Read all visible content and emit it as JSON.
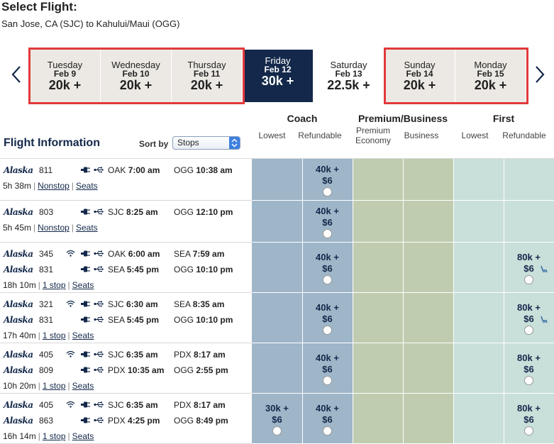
{
  "page": {
    "title": "Select Flight:",
    "route": "San Jose, CA (SJC) to Kahului/Maui (OGG)"
  },
  "dates": [
    {
      "dow": "Tuesday",
      "date": "Feb 9",
      "price": "20k +"
    },
    {
      "dow": "Wednesday",
      "date": "Feb 10",
      "price": "20k +"
    },
    {
      "dow": "Thursday",
      "date": "Feb 11",
      "price": "20k +"
    },
    {
      "dow": "Friday",
      "date": "Feb 12",
      "price": "30k +"
    },
    {
      "dow": "Saturday",
      "date": "Feb 13",
      "price": "22.5k +"
    },
    {
      "dow": "Sunday",
      "date": "Feb 14",
      "price": "20k +"
    },
    {
      "dow": "Monday",
      "date": "Feb 15",
      "price": "20k +"
    }
  ],
  "headers": {
    "coach": "Coach",
    "premium": "Premium/Business",
    "first": "First",
    "lowest": "Lowest",
    "refundable": "Refundable",
    "premium_economy": "Premium Economy",
    "business": "Business",
    "flight_info": "Flight Information",
    "sort_by": "Sort by",
    "sort_value": "Stops"
  },
  "airline": "Alaska",
  "flights": [
    {
      "legs": [
        {
          "num": "811",
          "wifi": false,
          "dep": "OAK",
          "dep_time": "7:00 am",
          "arr": "OGG",
          "arr_time": "10:38 am"
        }
      ],
      "duration": "5h 38m",
      "stops": "Nonstop",
      "seats": "Seats",
      "coach_lowest": null,
      "coach_ref": {
        "miles": "40k +",
        "fee": "$6"
      },
      "first_lowest": null,
      "first_ref": null
    },
    {
      "legs": [
        {
          "num": "803",
          "wifi": false,
          "dep": "SJC",
          "dep_time": "8:25 am",
          "arr": "OGG",
          "arr_time": "12:10 pm"
        }
      ],
      "duration": "5h 45m",
      "stops": "Nonstop",
      "seats": "Seats",
      "coach_lowest": null,
      "coach_ref": {
        "miles": "40k +",
        "fee": "$6"
      },
      "first_lowest": null,
      "first_ref": null
    },
    {
      "legs": [
        {
          "num": "345",
          "wifi": true,
          "dep": "OAK",
          "dep_time": "6:00 am",
          "arr": "SEA",
          "arr_time": "7:59 am"
        },
        {
          "num": "831",
          "wifi": false,
          "dep": "SEA",
          "dep_time": "5:45 pm",
          "arr": "OGG",
          "arr_time": "10:10 pm"
        }
      ],
      "duration": "18h 10m",
      "stops": "1 stop",
      "seats": "Seats",
      "coach_lowest": null,
      "coach_ref": {
        "miles": "40k +",
        "fee": "$6"
      },
      "first_lowest": null,
      "first_ref": {
        "miles": "80k +",
        "fee": "$6",
        "seat": true
      }
    },
    {
      "legs": [
        {
          "num": "321",
          "wifi": true,
          "dep": "SJC",
          "dep_time": "6:30 am",
          "arr": "SEA",
          "arr_time": "8:35 am"
        },
        {
          "num": "831",
          "wifi": false,
          "dep": "SEA",
          "dep_time": "5:45 pm",
          "arr": "OGG",
          "arr_time": "10:10 pm"
        }
      ],
      "duration": "17h 40m",
      "stops": "1 stop",
      "seats": "Seats",
      "coach_lowest": null,
      "coach_ref": {
        "miles": "40k +",
        "fee": "$6"
      },
      "first_lowest": null,
      "first_ref": {
        "miles": "80k +",
        "fee": "$6",
        "seat": true
      }
    },
    {
      "legs": [
        {
          "num": "405",
          "wifi": true,
          "dep": "SJC",
          "dep_time": "6:35 am",
          "arr": "PDX",
          "arr_time": "8:17 am"
        },
        {
          "num": "809",
          "wifi": false,
          "dep": "PDX",
          "dep_time": "10:35 am",
          "arr": "OGG",
          "arr_time": "2:55 pm"
        }
      ],
      "duration": "10h 20m",
      "stops": "1 stop",
      "seats": "Seats",
      "coach_lowest": null,
      "coach_ref": {
        "miles": "40k +",
        "fee": "$6"
      },
      "first_lowest": null,
      "first_ref": {
        "miles": "80k +",
        "fee": "$6",
        "seat": false
      }
    },
    {
      "legs": [
        {
          "num": "405",
          "wifi": true,
          "dep": "SJC",
          "dep_time": "6:35 am",
          "arr": "PDX",
          "arr_time": "8:17 am"
        },
        {
          "num": "863",
          "wifi": false,
          "dep": "PDX",
          "dep_time": "4:25 pm",
          "arr": "OGG",
          "arr_time": "8:49 pm"
        }
      ],
      "duration": "16h 14m",
      "stops": "1 stop",
      "seats": "Seats",
      "coach_lowest": {
        "miles": "30k +",
        "fee": "$6"
      },
      "coach_ref": {
        "miles": "40k +",
        "fee": "$6"
      },
      "first_lowest": null,
      "first_ref": {
        "miles": "80k +",
        "fee": "$6",
        "seat": false
      }
    }
  ],
  "colors": {
    "navy": "#13284a",
    "highlight": "#e2393b",
    "coach": "#9fb6c8",
    "premium": "#bfccb0",
    "first": "#c9dfda"
  }
}
